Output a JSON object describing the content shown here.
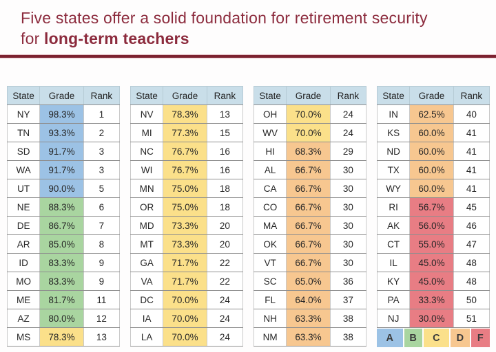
{
  "title": {
    "line1": "Five states offer a solid foundation for retirement security",
    "line2_prefix": "for ",
    "line2_bold": "long-term teachers"
  },
  "colors": {
    "title": "#8c2b3d",
    "rule": "#7c2230",
    "header_bg": "#c9dee9",
    "grade_bands": {
      "A": "#9cc2e5",
      "B": "#a9d5a0",
      "C": "#fbe08a",
      "D": "#f7c790",
      "F": "#e87d84"
    }
  },
  "table_headers": [
    "State",
    "Grade",
    "Rank"
  ],
  "tables": [
    {
      "rows": [
        {
          "state": "NY",
          "grade": "98.3%",
          "rank": "1",
          "band": "A"
        },
        {
          "state": "TN",
          "grade": "93.3%",
          "rank": "2",
          "band": "A"
        },
        {
          "state": "SD",
          "grade": "91.7%",
          "rank": "3",
          "band": "A"
        },
        {
          "state": "WA",
          "grade": "91.7%",
          "rank": "3",
          "band": "A"
        },
        {
          "state": "UT",
          "grade": "90.0%",
          "rank": "5",
          "band": "A"
        },
        {
          "state": "NE",
          "grade": "88.3%",
          "rank": "6",
          "band": "B"
        },
        {
          "state": "DE",
          "grade": "86.7%",
          "rank": "7",
          "band": "B"
        },
        {
          "state": "AR",
          "grade": "85.0%",
          "rank": "8",
          "band": "B"
        },
        {
          "state": "ID",
          "grade": "83.3%",
          "rank": "9",
          "band": "B"
        },
        {
          "state": "MO",
          "grade": "83.3%",
          "rank": "9",
          "band": "B"
        },
        {
          "state": "ME",
          "grade": "81.7%",
          "rank": "11",
          "band": "B"
        },
        {
          "state": "AZ",
          "grade": "80.0%",
          "rank": "12",
          "band": "B"
        },
        {
          "state": "MS",
          "grade": "78.3%",
          "rank": "13",
          "band": "C"
        }
      ]
    },
    {
      "rows": [
        {
          "state": "NV",
          "grade": "78.3%",
          "rank": "13",
          "band": "C"
        },
        {
          "state": "MI",
          "grade": "77.3%",
          "rank": "15",
          "band": "C"
        },
        {
          "state": "NC",
          "grade": "76.7%",
          "rank": "16",
          "band": "C"
        },
        {
          "state": "WI",
          "grade": "76.7%",
          "rank": "16",
          "band": "C"
        },
        {
          "state": "MN",
          "grade": "75.0%",
          "rank": "18",
          "band": "C"
        },
        {
          "state": "OR",
          "grade": "75.0%",
          "rank": "18",
          "band": "C"
        },
        {
          "state": "MD",
          "grade": "73.3%",
          "rank": "20",
          "band": "C"
        },
        {
          "state": "MT",
          "grade": "73.3%",
          "rank": "20",
          "band": "C"
        },
        {
          "state": "GA",
          "grade": "71.7%",
          "rank": "22",
          "band": "C"
        },
        {
          "state": "VA",
          "grade": "71.7%",
          "rank": "22",
          "band": "C"
        },
        {
          "state": "DC",
          "grade": "70.0%",
          "rank": "24",
          "band": "C"
        },
        {
          "state": "IA",
          "grade": "70.0%",
          "rank": "24",
          "band": "C"
        },
        {
          "state": "LA",
          "grade": "70.0%",
          "rank": "24",
          "band": "C"
        }
      ]
    },
    {
      "rows": [
        {
          "state": "OH",
          "grade": "70.0%",
          "rank": "24",
          "band": "C"
        },
        {
          "state": "WV",
          "grade": "70.0%",
          "rank": "24",
          "band": "C"
        },
        {
          "state": "HI",
          "grade": "68.3%",
          "rank": "29",
          "band": "D"
        },
        {
          "state": "AL",
          "grade": "66.7%",
          "rank": "30",
          "band": "D"
        },
        {
          "state": "CA",
          "grade": "66.7%",
          "rank": "30",
          "band": "D"
        },
        {
          "state": "CO",
          "grade": "66.7%",
          "rank": "30",
          "band": "D"
        },
        {
          "state": "MA",
          "grade": "66.7%",
          "rank": "30",
          "band": "D"
        },
        {
          "state": "OK",
          "grade": "66.7%",
          "rank": "30",
          "band": "D"
        },
        {
          "state": "VT",
          "grade": "66.7%",
          "rank": "30",
          "band": "D"
        },
        {
          "state": "SC",
          "grade": "65.0%",
          "rank": "36",
          "band": "D"
        },
        {
          "state": "FL",
          "grade": "64.0%",
          "rank": "37",
          "band": "D"
        },
        {
          "state": "NH",
          "grade": "63.3%",
          "rank": "38",
          "band": "D"
        },
        {
          "state": "NM",
          "grade": "63.3%",
          "rank": "38",
          "band": "D"
        }
      ]
    },
    {
      "rows": [
        {
          "state": "IN",
          "grade": "62.5%",
          "rank": "40",
          "band": "D"
        },
        {
          "state": "KS",
          "grade": "60.0%",
          "rank": "41",
          "band": "D"
        },
        {
          "state": "ND",
          "grade": "60.0%",
          "rank": "41",
          "band": "D"
        },
        {
          "state": "TX",
          "grade": "60.0%",
          "rank": "41",
          "band": "D"
        },
        {
          "state": "WY",
          "grade": "60.0%",
          "rank": "41",
          "band": "D"
        },
        {
          "state": "RI",
          "grade": "56.7%",
          "rank": "45",
          "band": "F"
        },
        {
          "state": "AK",
          "grade": "56.0%",
          "rank": "46",
          "band": "F"
        },
        {
          "state": "CT",
          "grade": "55.0%",
          "rank": "47",
          "band": "F"
        },
        {
          "state": "IL",
          "grade": "45.0%",
          "rank": "48",
          "band": "F"
        },
        {
          "state": "KY",
          "grade": "45.0%",
          "rank": "48",
          "band": "F"
        },
        {
          "state": "PA",
          "grade": "33.3%",
          "rank": "50",
          "band": "F"
        },
        {
          "state": "NJ",
          "grade": "30.0%",
          "rank": "51",
          "band": "F"
        }
      ]
    }
  ],
  "legend": [
    {
      "letter": "A",
      "band": "A"
    },
    {
      "letter": "B",
      "band": "B"
    },
    {
      "letter": "C",
      "band": "C"
    },
    {
      "letter": "D",
      "band": "D"
    },
    {
      "letter": "F",
      "band": "F"
    }
  ]
}
